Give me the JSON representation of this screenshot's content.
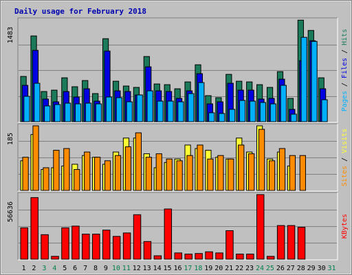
{
  "chart_data": [
    {
      "type": "bar",
      "title": "Daily usage for February 2018",
      "ymax_label": "1483",
      "legend": [
        "Pages",
        "Files",
        "Hits"
      ],
      "x": [
        "1",
        "2",
        "3",
        "4",
        "5",
        "6",
        "7",
        "8",
        "9",
        "10",
        "11",
        "12",
        "13",
        "14",
        "15",
        "16",
        "17",
        "18",
        "19",
        "20",
        "21",
        "22",
        "23",
        "24",
        "25",
        "26",
        "27",
        "28",
        "29",
        "30",
        "31"
      ],
      "weekend_days": [
        "3",
        "4",
        "10",
        "11",
        "17",
        "18",
        "24",
        "25",
        "31"
      ],
      "series": [
        {
          "name": "Hits",
          "values": [
            660,
            1250,
            440,
            460,
            640,
            510,
            600,
            410,
            1210,
            590,
            520,
            500,
            950,
            550,
            540,
            480,
            580,
            830,
            380,
            350,
            690,
            590,
            580,
            540,
            500,
            730,
            340,
            1480,
            1330,
            640,
            0
          ]
        },
        {
          "name": "Files",
          "values": [
            530,
            1040,
            330,
            290,
            440,
            360,
            480,
            300,
            1030,
            450,
            440,
            390,
            800,
            450,
            440,
            340,
            450,
            700,
            260,
            290,
            560,
            460,
            460,
            330,
            340,
            620,
            180,
            890,
            1180,
            480,
            0
          ]
        },
        {
          "name": "Pages",
          "values": [
            370,
            560,
            230,
            250,
            270,
            260,
            270,
            260,
            360,
            350,
            290,
            390,
            450,
            300,
            300,
            290,
            410,
            570,
            130,
            120,
            180,
            310,
            300,
            280,
            260,
            530,
            110,
            1230,
            1170,
            320,
            0
          ]
        }
      ],
      "colors": {
        "Hits": "#1a7a5a",
        "Files": "#0000e0",
        "Pages": "#00b0ff"
      }
    },
    {
      "type": "bar",
      "ymax_label": "185",
      "legend": [
        "Sites",
        "Visits"
      ],
      "series": [
        {
          "name": "Visits",
          "values": [
            85,
            160,
            60,
            65,
            70,
            75,
            100,
            95,
            75,
            110,
            150,
            150,
            105,
            65,
            80,
            90,
            130,
            120,
            115,
            95,
            90,
            150,
            110,
            185,
            90,
            110,
            70,
            0,
            0,
            0,
            0
          ]
        },
        {
          "name": "Sites",
          "values": [
            95,
            185,
            65,
            115,
            120,
            60,
            110,
            95,
            85,
            100,
            125,
            165,
            95,
            105,
            90,
            85,
            100,
            130,
            90,
            100,
            90,
            130,
            105,
            175,
            85,
            120,
            100,
            100,
            0,
            0,
            0
          ]
        }
      ],
      "colors": {
        "Visits": "#ffff33",
        "Sites": "#ff8c00"
      }
    },
    {
      "type": "bar",
      "ymax_label": "56636",
      "legend": [
        "KBytes"
      ],
      "series": [
        {
          "name": "KBytes",
          "values": [
            27500,
            54000,
            21500,
            2500,
            27500,
            29000,
            22000,
            22000,
            25500,
            20000,
            23000,
            39000,
            15500,
            3000,
            44000,
            5500,
            4500,
            5000,
            6500,
            5500,
            25000,
            4500,
            4500,
            56636,
            2500,
            29500,
            29500,
            28000,
            0,
            0,
            0
          ]
        }
      ],
      "colors": {
        "KBytes": "#ff0000"
      }
    }
  ]
}
